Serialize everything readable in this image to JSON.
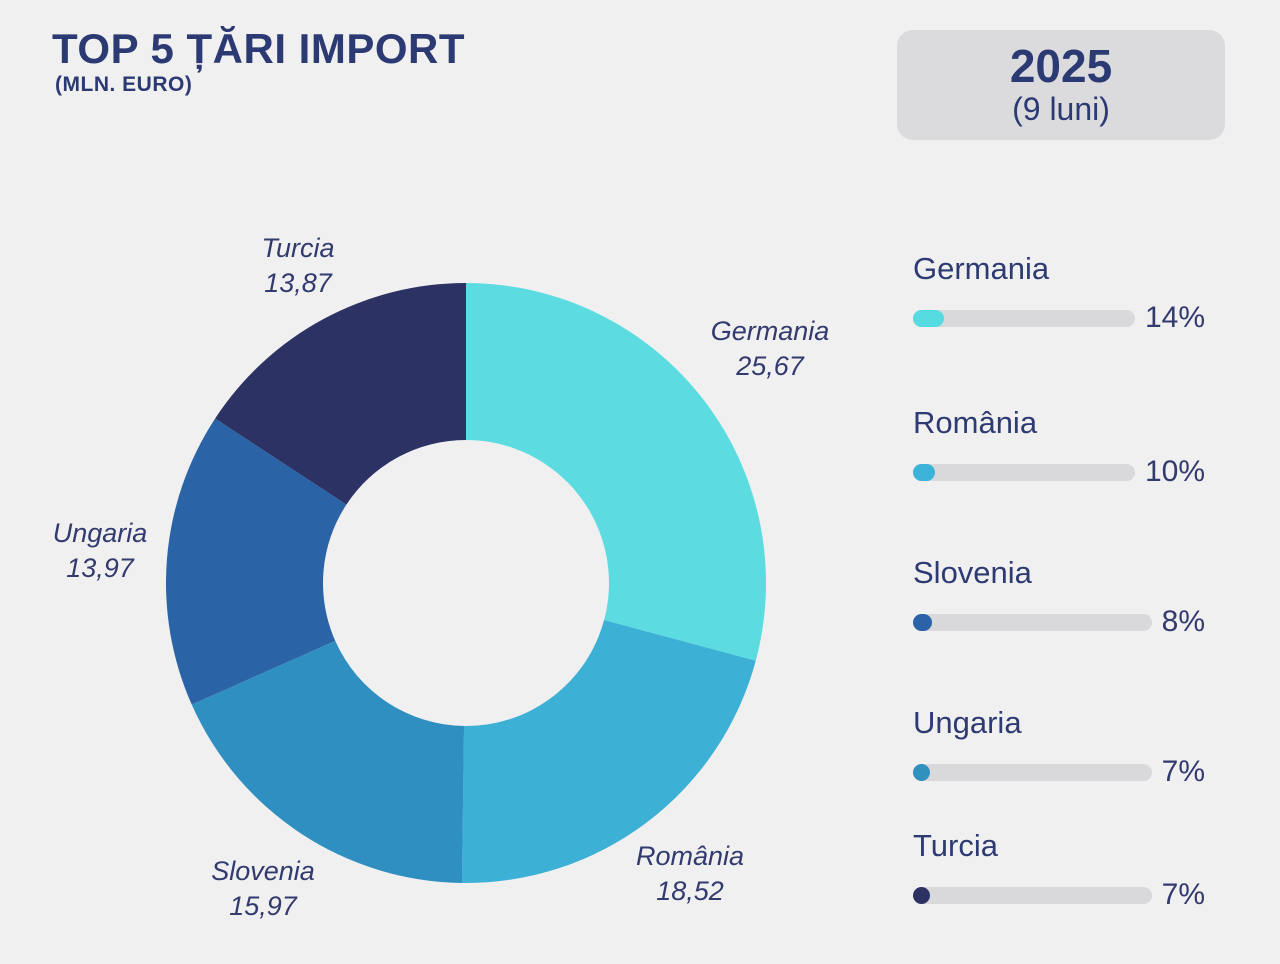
{
  "header": {
    "title": "TOP 5 ȚĂRI IMPORT",
    "subtitle": "(MLN. EURO)",
    "period": {
      "year": "2025",
      "detail": "(9 luni)"
    }
  },
  "colors": {
    "background": "#F0F0F1",
    "text_navy": "#2E3A72",
    "badge_background": "#DBDBDD",
    "legend_track_gray": "#D9D9DB"
  },
  "chart_data": {
    "type": "pie",
    "donut": true,
    "title": "TOP 5 ȚĂRI IMPORT",
    "subtitle": "(MLN. EURO)",
    "unit": "mln. euro",
    "start_angle_deg": 0,
    "direction": "clockwise",
    "categories": [
      "Germania",
      "România",
      "Slovenia",
      "Ungaria",
      "Turcia"
    ],
    "values": [
      25.67,
      18.52,
      15.97,
      13.97,
      13.87
    ],
    "value_labels": [
      "25,67",
      "18,52",
      "15,97",
      "13,97",
      "13,87"
    ],
    "slice_colors": [
      "#5CDCE1",
      "#3DB0D5",
      "#2E8FC0",
      "#2B64A6",
      "#2C3263"
    ],
    "legend": {
      "position": "right",
      "items": [
        {
          "label": "Germania",
          "percent": 14,
          "percent_label": "14%",
          "dot_color": "#56DBE1"
        },
        {
          "label": "România",
          "percent": 10,
          "percent_label": "10%",
          "dot_color": "#3CB3D8"
        },
        {
          "label": "Slovenia",
          "percent": 8,
          "percent_label": "8%",
          "dot_color": "#2B62A8"
        },
        {
          "label": "Ungaria",
          "percent": 7,
          "percent_label": "7%",
          "dot_color": "#3090BE"
        },
        {
          "label": "Turcia",
          "percent": 7,
          "percent_label": "7%",
          "dot_color": "#2C3263"
        }
      ]
    }
  }
}
